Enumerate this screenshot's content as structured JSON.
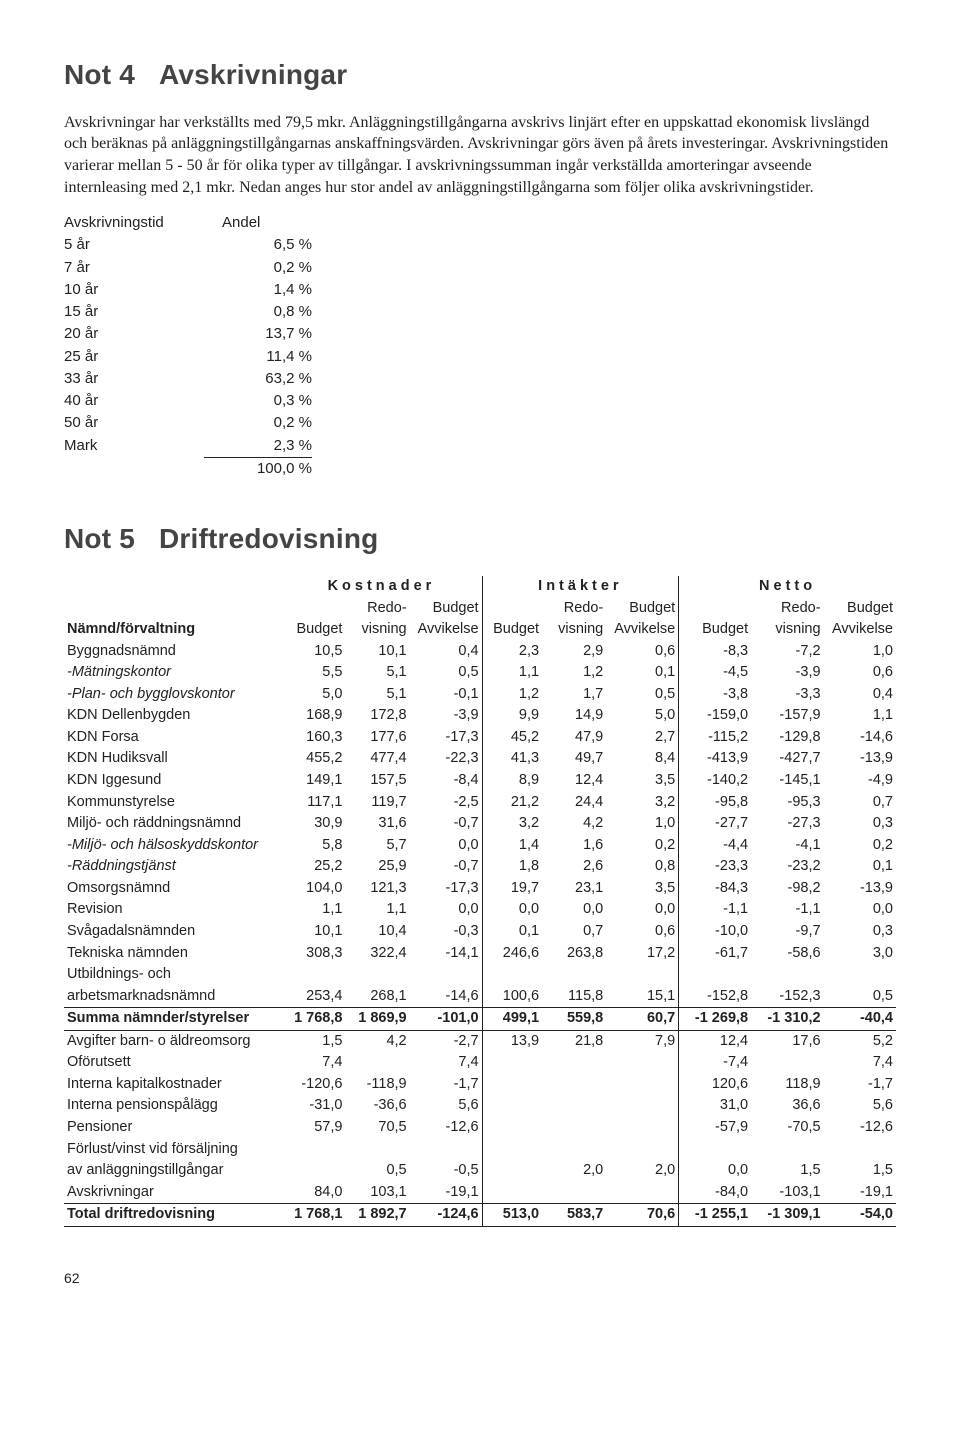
{
  "note4": {
    "heading_num": "Not 4",
    "heading_title": "Avskrivningar",
    "para1": "Avskrivningar har verkställts med 79,5 mkr. Anläggningstillgångarna avskrivs linjärt efter en uppskattad ekonomisk livslängd och beräknas på anläggningstillgångarnas anskaffningsvärden. Avskrivningar görs även på årets investeringar. Avskrivningstiden varierar mellan 5 - 50 år för olika typer av tillgångar. I avskrivningssumman ingår verkställda amorteringar avseende internleasing med 2,1 mkr. Nedan anges hur stor andel av anläggningstillgångarna som följer olika avskrivningstider.",
    "table": {
      "header": [
        "Avskrivningstid",
        "Andel"
      ],
      "rows": [
        [
          "5 år",
          "6,5 %"
        ],
        [
          "7 år",
          "0,2 %"
        ],
        [
          "10 år",
          "1,4 %"
        ],
        [
          "15 år",
          "0,8 %"
        ],
        [
          "20 år",
          "13,7 %"
        ],
        [
          "25 år",
          "11,4 %"
        ],
        [
          "33 år",
          "63,2 %"
        ],
        [
          "40 år",
          "0,3 %"
        ],
        [
          "50 år",
          "0,2 %"
        ],
        [
          "Mark",
          "2,3 %"
        ]
      ],
      "total": [
        "",
        "100,0 %"
      ]
    }
  },
  "note5": {
    "heading_num": "Not 5",
    "heading_title": "Driftredovisning",
    "groups": [
      "Kostnader",
      "Intäkter",
      "Netto"
    ],
    "subhead_row1": [
      "",
      "",
      "Redo-",
      "Budget",
      "",
      "Redo-",
      "Budget",
      "",
      "Redo-",
      "Budget"
    ],
    "subhead_row2": [
      "Nämnd/förvaltning",
      "Budget",
      "visning",
      "Avvikelse",
      "Budget",
      "visning",
      "Avvikelse",
      "Budget",
      "visning",
      "Avvikelse"
    ],
    "rows": [
      {
        "lbl": "Byggnadsnämnd",
        "v": [
          "10,5",
          "10,1",
          "0,4",
          "2,3",
          "2,9",
          "0,6",
          "-8,3",
          "-7,2",
          "1,0"
        ]
      },
      {
        "lbl": "-Mätningskontor",
        "italic": true,
        "v": [
          "5,5",
          "5,1",
          "0,5",
          "1,1",
          "1,2",
          "0,1",
          "-4,5",
          "-3,9",
          "0,6"
        ]
      },
      {
        "lbl": "-Plan- och bygglovskontor",
        "italic": true,
        "v": [
          "5,0",
          "5,1",
          "-0,1",
          "1,2",
          "1,7",
          "0,5",
          "-3,8",
          "-3,3",
          "0,4"
        ]
      },
      {
        "lbl": "KDN Dellenbygden",
        "v": [
          "168,9",
          "172,8",
          "-3,9",
          "9,9",
          "14,9",
          "5,0",
          "-159,0",
          "-157,9",
          "1,1"
        ]
      },
      {
        "lbl": "KDN Forsa",
        "v": [
          "160,3",
          "177,6",
          "-17,3",
          "45,2",
          "47,9",
          "2,7",
          "-115,2",
          "-129,8",
          "-14,6"
        ]
      },
      {
        "lbl": "KDN Hudiksvall",
        "v": [
          "455,2",
          "477,4",
          "-22,3",
          "41,3",
          "49,7",
          "8,4",
          "-413,9",
          "-427,7",
          "-13,9"
        ]
      },
      {
        "lbl": "KDN Iggesund",
        "v": [
          "149,1",
          "157,5",
          "-8,4",
          "8,9",
          "12,4",
          "3,5",
          "-140,2",
          "-145,1",
          "-4,9"
        ]
      },
      {
        "lbl": "Kommunstyrelse",
        "v": [
          "117,1",
          "119,7",
          "-2,5",
          "21,2",
          "24,4",
          "3,2",
          "-95,8",
          "-95,3",
          "0,7"
        ]
      },
      {
        "lbl": "Miljö- och räddningsnämnd",
        "v": [
          "30,9",
          "31,6",
          "-0,7",
          "3,2",
          "4,2",
          "1,0",
          "-27,7",
          "-27,3",
          "0,3"
        ]
      },
      {
        "lbl": "-Miljö- och hälsoskyddskontor",
        "italic": true,
        "v": [
          "5,8",
          "5,7",
          "0,0",
          "1,4",
          "1,6",
          "0,2",
          "-4,4",
          "-4,1",
          "0,2"
        ]
      },
      {
        "lbl": "-Räddningstjänst",
        "italic": true,
        "v": [
          "25,2",
          "25,9",
          "-0,7",
          "1,8",
          "2,6",
          "0,8",
          "-23,3",
          "-23,2",
          "0,1"
        ]
      },
      {
        "lbl": "Omsorgsnämnd",
        "v": [
          "104,0",
          "121,3",
          "-17,3",
          "19,7",
          "23,1",
          "3,5",
          "-84,3",
          "-98,2",
          "-13,9"
        ]
      },
      {
        "lbl": "Revision",
        "v": [
          "1,1",
          "1,1",
          "0,0",
          "0,0",
          "0,0",
          "0,0",
          "-1,1",
          "-1,1",
          "0,0"
        ]
      },
      {
        "lbl": "Svågadalsnämnden",
        "v": [
          "10,1",
          "10,4",
          "-0,3",
          "0,1",
          "0,7",
          "0,6",
          "-10,0",
          "-9,7",
          "0,3"
        ]
      },
      {
        "lbl": "Tekniska nämnden",
        "v": [
          "308,3",
          "322,4",
          "-14,1",
          "246,6",
          "263,8",
          "17,2",
          "-61,7",
          "-58,6",
          "3,0"
        ]
      },
      {
        "lbl": "Utbildnings- och",
        "v": [
          "",
          "",
          "",
          "",
          "",
          "",
          "",
          "",
          ""
        ]
      },
      {
        "lbl": "arbetsmarknadsnämnd",
        "v": [
          "253,4",
          "268,1",
          "-14,6",
          "100,6",
          "115,8",
          "15,1",
          "-152,8",
          "-152,3",
          "0,5"
        ]
      }
    ],
    "sum1": {
      "lbl": "Summa nämnder/styrelser",
      "v": [
        "1 768,8",
        "1 869,9",
        "-101,0",
        "499,1",
        "559,8",
        "60,7",
        "-1 269,8",
        "-1 310,2",
        "-40,4"
      ]
    },
    "rows2": [
      {
        "lbl": "Avgifter barn- o äldreomsorg",
        "v": [
          "1,5",
          "4,2",
          "-2,7",
          "13,9",
          "21,8",
          "7,9",
          "12,4",
          "17,6",
          "5,2"
        ]
      },
      {
        "lbl": "Oförutsett",
        "v": [
          "7,4",
          "",
          "7,4",
          "",
          "",
          "",
          "-7,4",
          "",
          "7,4"
        ]
      },
      {
        "lbl": "Interna kapitalkostnader",
        "v": [
          "-120,6",
          "-118,9",
          "-1,7",
          "",
          "",
          "",
          "120,6",
          "118,9",
          "-1,7"
        ]
      },
      {
        "lbl": "Interna pensionspålägg",
        "v": [
          "-31,0",
          "-36,6",
          "5,6",
          "",
          "",
          "",
          "31,0",
          "36,6",
          "5,6"
        ]
      },
      {
        "lbl": "Pensioner",
        "v": [
          "57,9",
          "70,5",
          "-12,6",
          "",
          "",
          "",
          "-57,9",
          "-70,5",
          "-12,6"
        ]
      },
      {
        "lbl": "Förlust/vinst vid försäljning",
        "v": [
          "",
          "",
          "",
          "",
          "",
          "",
          "",
          "",
          ""
        ]
      },
      {
        "lbl": "av anläggningstillgångar",
        "v": [
          "",
          "0,5",
          "-0,5",
          "",
          "2,0",
          "2,0",
          "0,0",
          "1,5",
          "1,5"
        ]
      },
      {
        "lbl": "Avskrivningar",
        "v": [
          "84,0",
          "103,1",
          "-19,1",
          "",
          "",
          "",
          "-84,0",
          "-103,1",
          "-19,1"
        ]
      }
    ],
    "grand": {
      "lbl": "Total driftredovisning",
      "v": [
        "1 768,1",
        "1 892,7",
        "-124,6",
        "513,0",
        "583,7",
        "70,6",
        "-1 255,1",
        "-1 309,1",
        "-54,0"
      ]
    }
  },
  "page_number": "62"
}
